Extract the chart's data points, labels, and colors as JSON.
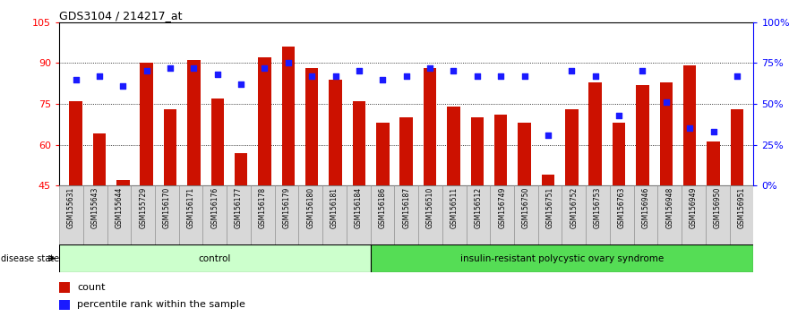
{
  "title": "GDS3104 / 214217_at",
  "samples": [
    "GSM155631",
    "GSM155643",
    "GSM155644",
    "GSM155729",
    "GSM156170",
    "GSM156171",
    "GSM156176",
    "GSM156177",
    "GSM156178",
    "GSM156179",
    "GSM156180",
    "GSM156181",
    "GSM156184",
    "GSM156186",
    "GSM156187",
    "GSM156510",
    "GSM156511",
    "GSM156512",
    "GSM156749",
    "GSM156750",
    "GSM156751",
    "GSM156752",
    "GSM156753",
    "GSM156763",
    "GSM156946",
    "GSM156948",
    "GSM156949",
    "GSM156950",
    "GSM156951"
  ],
  "bar_values": [
    76,
    64,
    47,
    90,
    73,
    91,
    77,
    57,
    92,
    96,
    88,
    84,
    76,
    68,
    70,
    88,
    74,
    70,
    71,
    68,
    49,
    73,
    83,
    68,
    82,
    83,
    89,
    61,
    73
  ],
  "percentile_values": [
    65,
    67,
    61,
    70,
    72,
    72,
    68,
    62,
    72,
    75,
    67,
    67,
    70,
    65,
    67,
    72,
    70,
    67,
    67,
    67,
    31,
    70,
    67,
    43,
    70,
    51,
    35,
    33,
    67
  ],
  "group_labels": [
    "control",
    "insulin-resistant polycystic ovary syndrome"
  ],
  "group_sizes": [
    13,
    16
  ],
  "ylim_left": [
    45,
    105
  ],
  "ylim_right": [
    0,
    100
  ],
  "yticks_left": [
    45,
    60,
    75,
    90,
    105
  ],
  "ytick_labels_left": [
    "45",
    "60",
    "75",
    "90",
    "105"
  ],
  "yticks_right_pct": [
    0,
    25,
    50,
    75,
    100
  ],
  "ytick_labels_right": [
    "0%",
    "25%",
    "50%",
    "75%",
    "100%"
  ],
  "bar_color": "#cc1100",
  "dot_color": "#1a1aff",
  "control_bg": "#ccffcc",
  "disease_bg": "#55dd55",
  "label_bg": "#d8d8d8",
  "bar_width": 0.55,
  "disease_state_label": "disease state"
}
